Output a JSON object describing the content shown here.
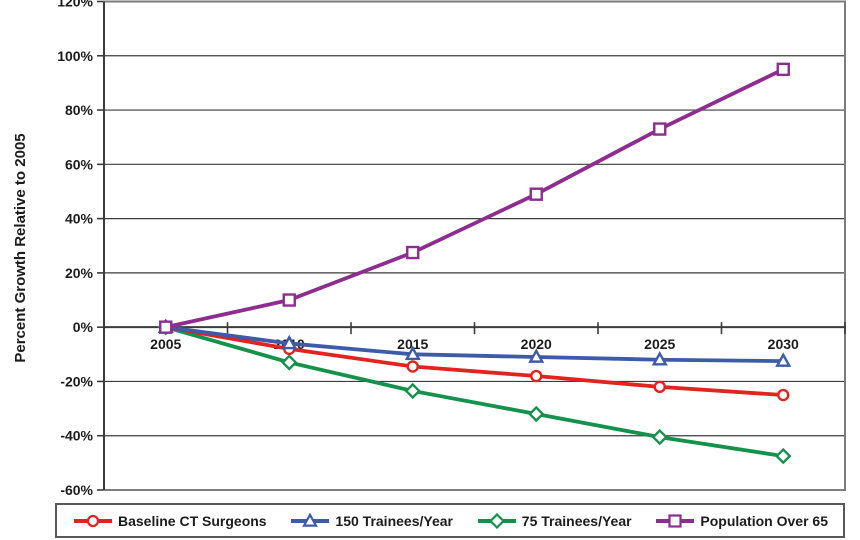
{
  "chart_data": {
    "type": "line",
    "title": "",
    "xlabel": "",
    "ylabel": "Percent Growth Relative to 2005",
    "categories": [
      "2005",
      "2010",
      "2015",
      "2020",
      "2025",
      "2030"
    ],
    "ylim": [
      -60,
      120
    ],
    "ytick_step": 20,
    "ytick_labels": [
      "120%",
      "100%",
      "80%",
      "60%",
      "40%",
      "20%",
      "0%",
      "-20%",
      "-40%",
      "-60%"
    ],
    "grid": "horizontal",
    "legend_position": "bottom",
    "axis_color": "#3c3c3c",
    "border_color": "#7d7d7f",
    "text_color": "#1c1c1c",
    "series": [
      {
        "name": "Baseline CT Surgeons",
        "marker": "circle",
        "color": "#e2231e",
        "values": [
          0,
          -8,
          -14.5,
          -18,
          -22,
          -25
        ]
      },
      {
        "name": "150 Trainees/Year",
        "marker": "triangle",
        "color": "#3d5ba9",
        "values": [
          0,
          -6,
          -10,
          -11,
          -12,
          -12.5
        ]
      },
      {
        "name": "75 Trainees/Year",
        "marker": "diamond",
        "color": "#14914a",
        "values": [
          0,
          -13,
          -23.5,
          -32,
          -40.5,
          -47.5
        ]
      },
      {
        "name": "Population Over 65",
        "marker": "square",
        "color": "#8c2d8f",
        "values": [
          0,
          10,
          27.5,
          49,
          73,
          95
        ]
      }
    ],
    "draw_order": [
      2,
      0,
      1,
      3
    ]
  }
}
